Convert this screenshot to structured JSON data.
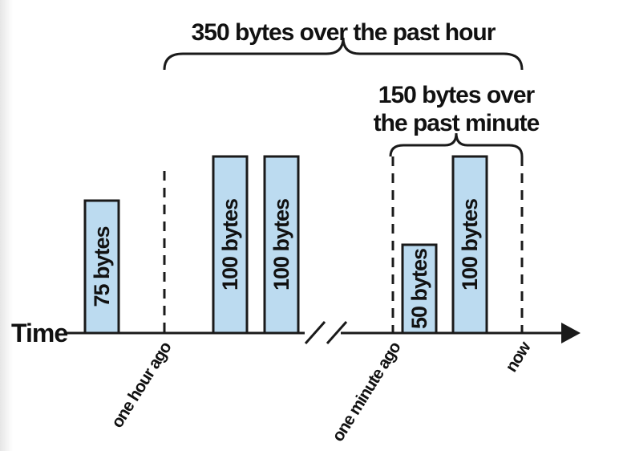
{
  "axis": {
    "label": "Time"
  },
  "colors": {
    "bar_fill": "#bcdbf0",
    "ink": "#1a1a1a"
  },
  "bars": [
    {
      "label": "75 bytes",
      "bytes": 75
    },
    {
      "label": "100 bytes",
      "bytes": 100
    },
    {
      "label": "100 bytes",
      "bytes": 100
    },
    {
      "label": "50 bytes",
      "bytes": 50
    },
    {
      "label": "100 bytes",
      "bytes": 100
    }
  ],
  "markers": [
    {
      "label": "one hour ago"
    },
    {
      "label": "one minute ago"
    },
    {
      "label": "now"
    }
  ],
  "spans": {
    "hour": {
      "lines": [
        "350 bytes over the past hour"
      ]
    },
    "minute": {
      "lines": [
        "150 bytes over",
        "the past minute"
      ]
    }
  },
  "icons": [
    "axis-arrowhead-icon",
    "axis-break-icon",
    "curly-brace-icon"
  ]
}
